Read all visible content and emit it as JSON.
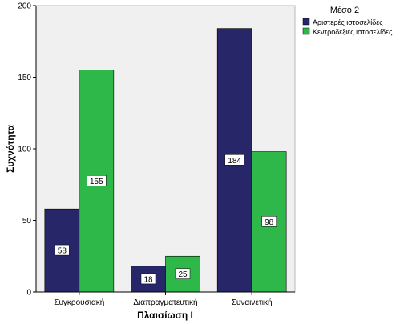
{
  "chart_data": {
    "type": "bar",
    "categories": [
      "Συγκρουσιακή",
      "Διαπραγματευτική",
      "Συναινετική"
    ],
    "series": [
      {
        "name": "Αριστερές ιστοσελίδες",
        "values": [
          58,
          18,
          184
        ],
        "color": "#262668"
      },
      {
        "name": "Κεντροδεξιές ιστοσελίδες",
        "values": [
          155,
          25,
          98
        ],
        "color": "#2fb84a"
      }
    ],
    "xlabel": "Πλαισίωση Ι",
    "ylabel": "Συχνότητα",
    "ylim": [
      0,
      200
    ],
    "yticks": [
      0,
      50,
      100,
      150,
      200
    ],
    "legend_title": "Μέσο 2",
    "legend_position": "top-right",
    "grid": false,
    "plot_background": "#f0f0f0",
    "data_labels": true
  }
}
